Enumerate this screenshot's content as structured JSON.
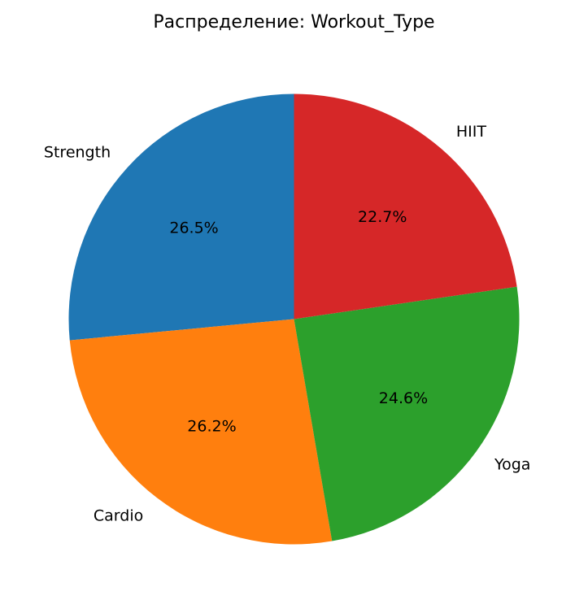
{
  "chart_data": {
    "type": "pie",
    "title": "Распределение: Workout_Type",
    "categories": [
      "Strength",
      "Cardio",
      "Yoga",
      "HIIT"
    ],
    "values": [
      26.5,
      26.2,
      24.6,
      22.7
    ],
    "pct_labels": [
      "26.5%",
      "26.2%",
      "24.6%",
      "22.7%"
    ],
    "colors": [
      "#1f77b4",
      "#ff7f0e",
      "#2ca02c",
      "#d62728"
    ],
    "start_angle_deg": 90,
    "direction": "counterclockwise",
    "legend": "none"
  }
}
